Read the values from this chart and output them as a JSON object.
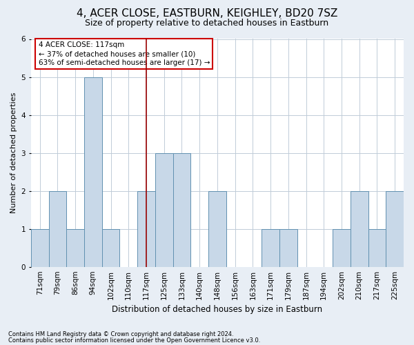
{
  "title1": "4, ACER CLOSE, EASTBURN, KEIGHLEY, BD20 7SZ",
  "title2": "Size of property relative to detached houses in Eastburn",
  "xlabel": "Distribution of detached houses by size in Eastburn",
  "ylabel": "Number of detached properties",
  "categories": [
    "71sqm",
    "79sqm",
    "86sqm",
    "94sqm",
    "102sqm",
    "110sqm",
    "117sqm",
    "125sqm",
    "133sqm",
    "140sqm",
    "148sqm",
    "156sqm",
    "163sqm",
    "171sqm",
    "179sqm",
    "187sqm",
    "194sqm",
    "202sqm",
    "210sqm",
    "217sqm",
    "225sqm"
  ],
  "values": [
    1,
    2,
    1,
    5,
    1,
    0,
    2,
    3,
    3,
    0,
    2,
    0,
    0,
    1,
    1,
    0,
    0,
    1,
    2,
    1,
    2
  ],
  "bar_color": "#c8d8e8",
  "bar_edge_color": "#6090b0",
  "vline_index": 6,
  "vline_color": "#990000",
  "annotation_lines": [
    "4 ACER CLOSE: 117sqm",
    "← 37% of detached houses are smaller (10)",
    "63% of semi-detached houses are larger (17) →"
  ],
  "annotation_box_facecolor": "white",
  "annotation_box_edgecolor": "#cc0000",
  "ylim": [
    0,
    6
  ],
  "yticks": [
    0,
    1,
    2,
    3,
    4,
    5,
    6
  ],
  "footnote1": "Contains HM Land Registry data © Crown copyright and database right 2024.",
  "footnote2": "Contains public sector information licensed under the Open Government Licence v3.0.",
  "bg_color": "#e8eef5",
  "plot_bg_color": "#ffffff",
  "grid_color": "#c0ccd8",
  "title1_fontsize": 11,
  "title2_fontsize": 9,
  "ylabel_fontsize": 8,
  "xlabel_fontsize": 8.5,
  "tick_fontsize": 7.5,
  "annot_fontsize": 7.5,
  "footnote_fontsize": 6
}
